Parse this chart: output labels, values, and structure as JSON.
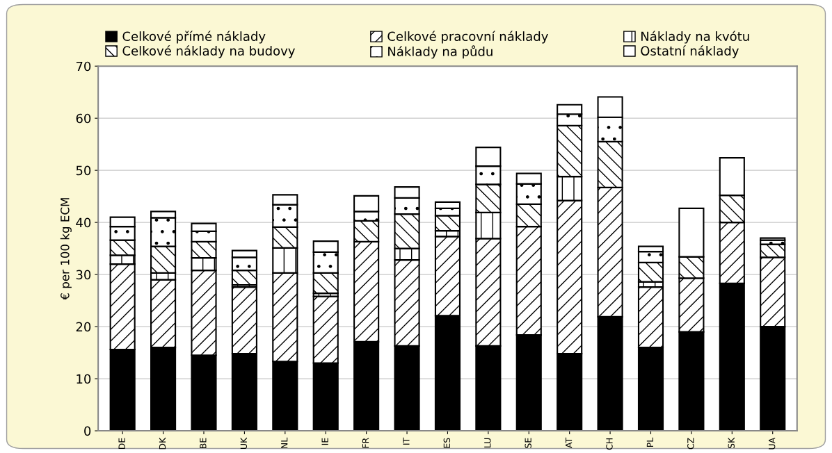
{
  "chart_data": {
    "type": "bar",
    "stacked": true,
    "ylabel": "€ per 100 kg ECM",
    "ylim": [
      0,
      70
    ],
    "yticks": [
      0,
      10,
      20,
      30,
      40,
      50,
      60,
      70
    ],
    "grid": "y",
    "legend": "top",
    "categories": [
      "DE",
      "DK",
      "BE",
      "UK",
      "NL",
      "IE",
      "FR",
      "IT",
      "ES",
      "LU",
      "SE",
      "AT",
      "CH",
      "PL",
      "CZ",
      "SK",
      "UA"
    ],
    "series": [
      {
        "name": "Celkové přímé náklady",
        "color": "#000000",
        "values": [
          15.6,
          16.0,
          14.5,
          14.8,
          13.3,
          13.0,
          17.1,
          16.3,
          22.1,
          16.3,
          18.4,
          14.8,
          21.9,
          16.0,
          19.0,
          28.3,
          20.0
        ]
      },
      {
        "name": "Celkové pracovní náklady",
        "color": "#000000",
        "values": [
          16.4,
          13.0,
          16.3,
          12.8,
          17.0,
          12.8,
          19.2,
          16.5,
          15.2,
          20.6,
          20.8,
          29.4,
          24.8,
          11.6,
          10.3,
          11.7,
          13.3
        ]
      },
      {
        "name": "Náklady na kvótu",
        "color": "#000000",
        "values": [
          1.7,
          1.3,
          2.4,
          0.4,
          4.8,
          0.6,
          null,
          2.2,
          1.1,
          5.0,
          null,
          4.6,
          null,
          1.0,
          null,
          null,
          null
        ]
      },
      {
        "name": "Celkové náklady na budovy",
        "color": "#000000",
        "values": [
          2.9,
          5.1,
          3.1,
          2.8,
          4.0,
          3.9,
          4.0,
          6.6,
          2.9,
          5.4,
          4.3,
          9.8,
          8.8,
          3.7,
          4.1,
          5.2,
          2.5
        ]
      },
      {
        "name": "Náklady na půdu",
        "color": "#000000",
        "values": [
          2.6,
          5.5,
          2.0,
          2.5,
          4.3,
          4.0,
          1.8,
          3.1,
          1.4,
          3.5,
          3.9,
          2.2,
          4.7,
          2.1,
          null,
          null,
          0.8
        ]
      },
      {
        "name": "Ostatní náklady",
        "color": "#ffffff",
        "values": [
          1.8,
          1.2,
          1.5,
          1.3,
          1.9,
          2.1,
          3.0,
          2.1,
          1.2,
          3.6,
          2.0,
          1.8,
          3.9,
          1.0,
          9.3,
          7.2,
          0.4
        ]
      }
    ]
  }
}
